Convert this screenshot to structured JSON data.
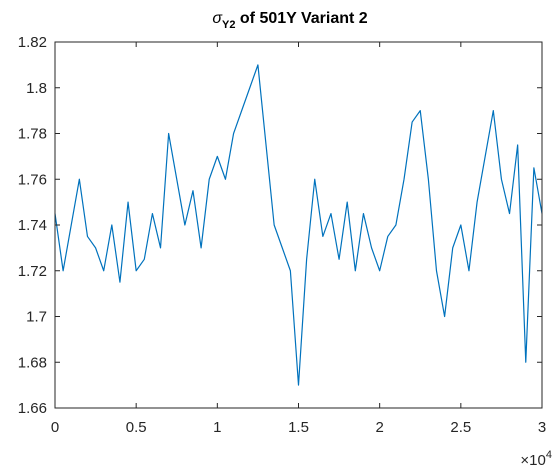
{
  "chart_data": {
    "type": "line",
    "title_symbol": "σ",
    "title_subscript": "Y2",
    "title_rest": " of 501Y Variant 2",
    "xlabel": "",
    "ylabel": "",
    "xlim": [
      0,
      3
    ],
    "ylim": [
      1.66,
      1.82
    ],
    "x_exponent_label": "×10",
    "x_exponent_power": "4",
    "x_ticks": [
      0,
      0.5,
      1,
      1.5,
      2,
      2.5,
      3
    ],
    "x_tick_labels": [
      "0",
      "0.5",
      "1",
      "1.5",
      "2",
      "2.5",
      "3"
    ],
    "y_ticks": [
      1.66,
      1.68,
      1.7,
      1.72,
      1.74,
      1.76,
      1.78,
      1.8,
      1.82
    ],
    "y_tick_labels": [
      "1.66",
      "1.68",
      "1.7",
      "1.72",
      "1.74",
      "1.76",
      "1.78",
      "1.8",
      "1.82"
    ],
    "grid": false,
    "series": [
      {
        "color": "#0072BD",
        "x": [
          0,
          0.05,
          0.1,
          0.15,
          0.2,
          0.25,
          0.3,
          0.35,
          0.4,
          0.45,
          0.5,
          0.55,
          0.6,
          0.65,
          0.7,
          0.75,
          0.8,
          0.85,
          0.9,
          0.95,
          1.0,
          1.05,
          1.1,
          1.15,
          1.2,
          1.25,
          1.3,
          1.35,
          1.4,
          1.45,
          1.5,
          1.55,
          1.6,
          1.65,
          1.7,
          1.75,
          1.8,
          1.85,
          1.9,
          1.95,
          2.0,
          2.05,
          2.1,
          2.15,
          2.2,
          2.25,
          2.3,
          2.35,
          2.4,
          2.45,
          2.5,
          2.55,
          2.6,
          2.65,
          2.7,
          2.75,
          2.8,
          2.85,
          2.9,
          2.95,
          3.0
        ],
        "y": [
          1.745,
          1.72,
          1.74,
          1.76,
          1.735,
          1.73,
          1.72,
          1.74,
          1.715,
          1.75,
          1.72,
          1.725,
          1.745,
          1.73,
          1.78,
          1.76,
          1.74,
          1.755,
          1.73,
          1.76,
          1.77,
          1.76,
          1.78,
          1.79,
          1.8,
          1.81,
          1.775,
          1.74,
          1.73,
          1.72,
          1.67,
          1.725,
          1.76,
          1.735,
          1.745,
          1.725,
          1.75,
          1.72,
          1.745,
          1.73,
          1.72,
          1.735,
          1.74,
          1.76,
          1.785,
          1.79,
          1.76,
          1.72,
          1.7,
          1.73,
          1.74,
          1.72,
          1.75,
          1.77,
          1.79,
          1.76,
          1.745,
          1.775,
          1.68,
          1.765,
          1.745
        ]
      }
    ]
  }
}
